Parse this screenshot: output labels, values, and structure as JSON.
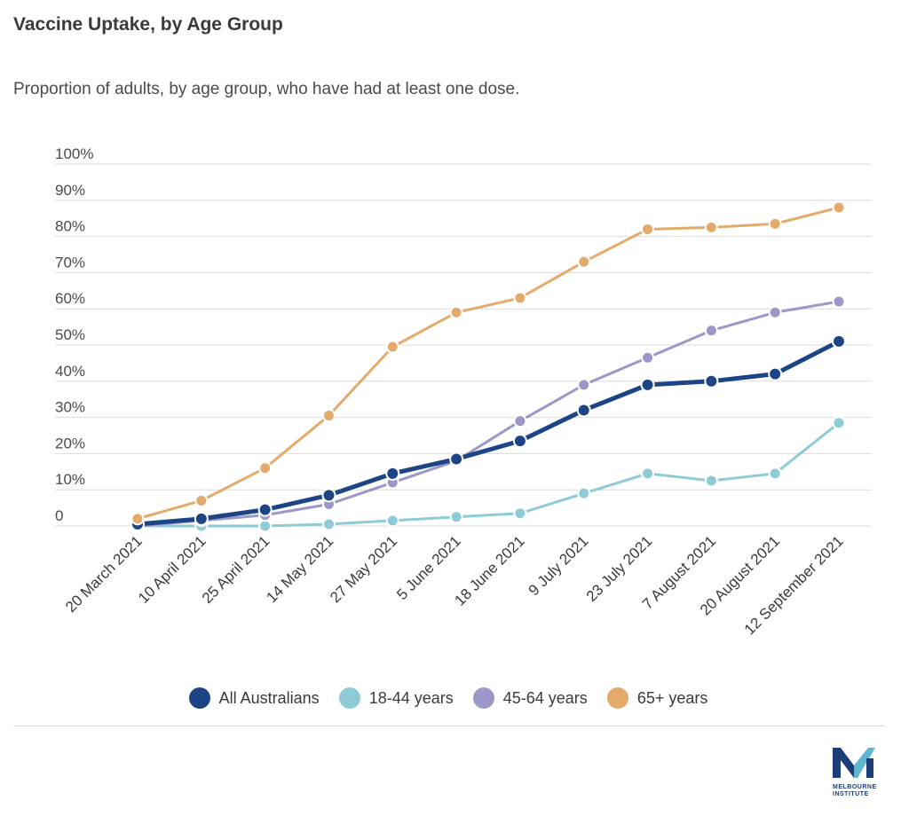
{
  "title": "Vaccine Uptake, by Age Group",
  "subtitle": "Proportion of adults, by age group, who have had at least one dose.",
  "chart_data": {
    "type": "line",
    "categories": [
      "20 March 2021",
      "10 April 2021",
      "25 April 2021",
      "14 May 2021",
      "27 May 2021",
      "5 June 2021",
      "18 June 2021",
      "9 July 2021",
      "23 July 2021",
      "7 August 2021",
      "20 August 2021",
      "12 September 2021"
    ],
    "y_ticks": [
      "0",
      "10%",
      "20%",
      "30%",
      "40%",
      "50%",
      "60%",
      "70%",
      "80%",
      "90%",
      "100%"
    ],
    "ylim": [
      0,
      100
    ],
    "grid": true,
    "legend_position": "bottom",
    "series": [
      {
        "name": "All Australians",
        "color": "#1d4485",
        "values": [
          0.5,
          2,
          4.5,
          8.5,
          14.5,
          18.5,
          23.5,
          32,
          39,
          40,
          42,
          51
        ]
      },
      {
        "name": "18-44 years",
        "color": "#8ecbd6",
        "values": [
          0,
          0,
          0,
          0.5,
          1.5,
          2.5,
          3.5,
          9,
          14.5,
          12.5,
          14.5,
          28.5
        ]
      },
      {
        "name": "45-64 years",
        "color": "#9b97c8",
        "values": [
          0,
          1.5,
          3,
          6,
          12,
          18,
          29,
          39,
          46.5,
          54,
          59,
          62
        ]
      },
      {
        "name": "65+ years",
        "color": "#e3aa6c",
        "values": [
          2,
          7,
          16,
          30.5,
          49.5,
          59,
          63,
          73,
          82,
          82.5,
          83.5,
          88
        ]
      }
    ]
  },
  "logo": {
    "text_line1": "MELBOURNE",
    "text_line2": "INSTITUTE"
  }
}
